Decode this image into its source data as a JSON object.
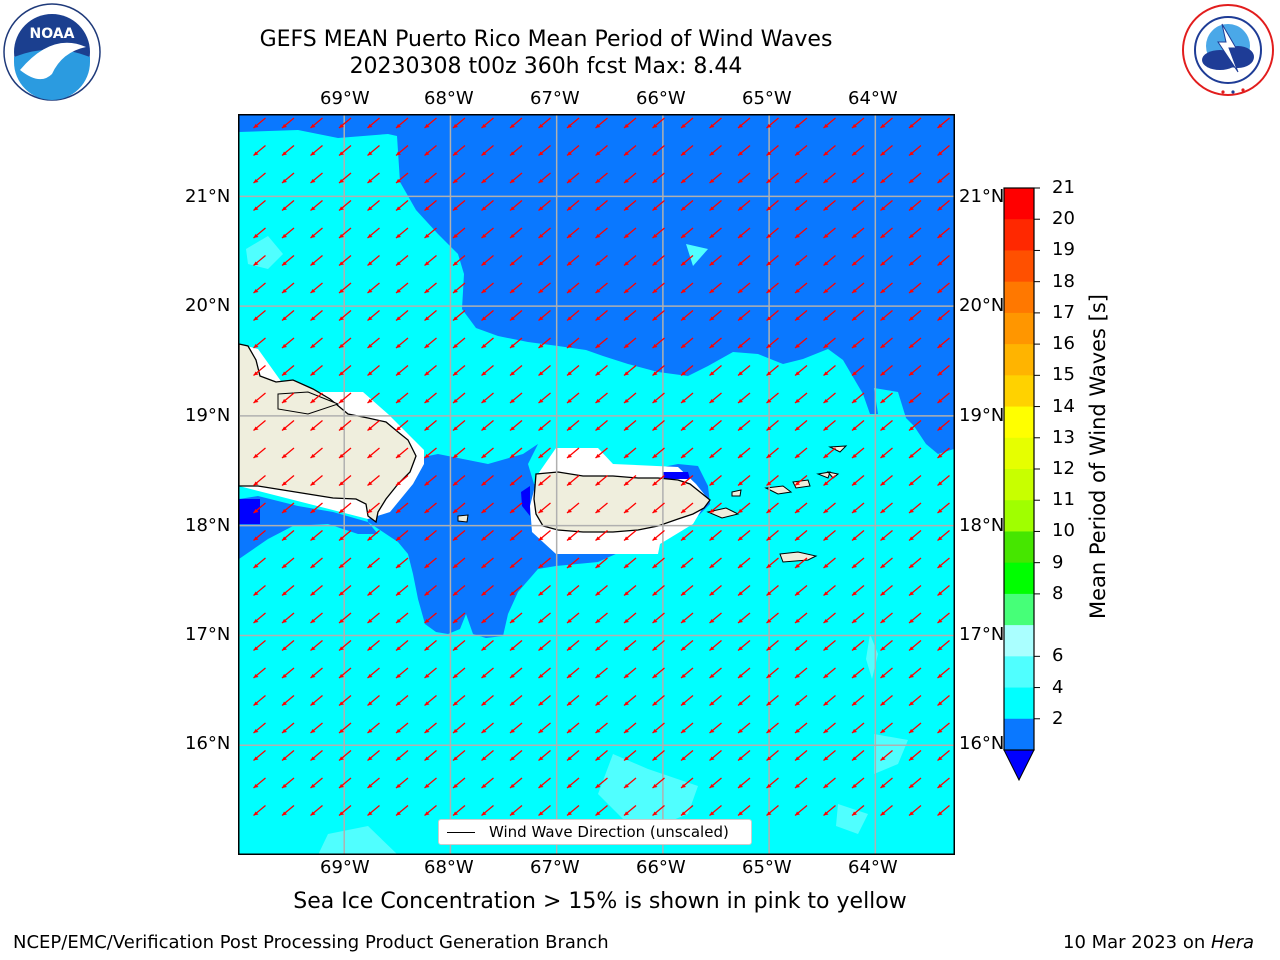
{
  "header": {
    "title_line1": "GEFS MEAN Puerto Rico Mean Period of Wind Waves",
    "title_line2": "20230308 t00z 360h fcst   Max: 8.44"
  },
  "logos": {
    "left_name": "noaa-logo",
    "left_text": "NOAA",
    "left_ring_text": "NATIONAL OCEANIC AND ATMOSPHERIC ADMINISTRATION · U.S. DEPARTMENT OF COMMERCE",
    "right_name": "nws-logo",
    "right_ring_text": "NATIONAL WEATHER SERVICE"
  },
  "map": {
    "lon_labels": [
      "69°W",
      "68°W",
      "67°W",
      "66°W",
      "65°W",
      "64°W"
    ],
    "lat_labels": [
      "21°N",
      "20°N",
      "19°N",
      "18°N",
      "17°N",
      "16°N"
    ],
    "lon_values": [
      -69,
      -68,
      -67,
      -66,
      -65,
      -64
    ],
    "lat_values": [
      21,
      20,
      19,
      18,
      17,
      16
    ],
    "lon_range": [
      -70.0,
      -63.25
    ],
    "lat_range": [
      15.0,
      21.75
    ],
    "legend_label": "Wind Wave Direction (unscaled)",
    "arrow_color": "#ff0000",
    "land_color": "#efeedd",
    "field_colors": {
      "2-4": "#0a78ff",
      "4-6": "#00ffff",
      "6-8": "#50ffff",
      "below": "#0000ff",
      "missing": "#ffffff"
    },
    "gridlines": true
  },
  "colorbar": {
    "label": "Mean Period of Wind Waves [s]",
    "ticks": [
      "21",
      "20",
      "19",
      "18",
      "17",
      "16",
      "15",
      "14",
      "13",
      "12",
      "11",
      "10",
      "9",
      "8",
      "6",
      "4",
      "2"
    ],
    "colors_top_to_bottom": [
      "#ff0000",
      "#ff2800",
      "#ff5000",
      "#ff7800",
      "#ff9600",
      "#ffb400",
      "#ffd200",
      "#ffff00",
      "#e6ff00",
      "#c8ff00",
      "#a0ff00",
      "#46e600",
      "#00ff00",
      "#46ff78",
      "#aaffff",
      "#50ffff",
      "#00ffff",
      "#0a78ff"
    ],
    "extend_color": "#0000ff"
  },
  "footer": {
    "subtitle": "Sea Ice Concentration > 15% is shown in pink to yellow",
    "left": "NCEP/EMC/Verification Post Processing Product Generation Branch",
    "right_prefix": "10 Mar 2023 on ",
    "right_host": "Hera"
  }
}
